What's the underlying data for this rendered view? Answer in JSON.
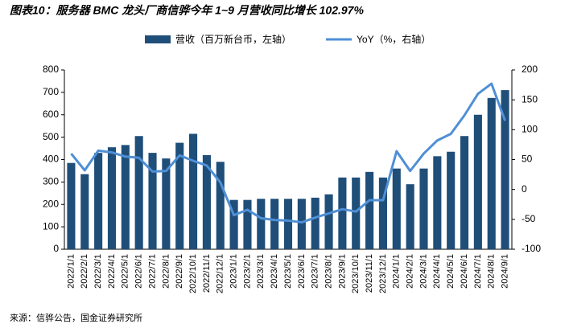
{
  "chart_data": {
    "type": "bar-line",
    "title": "图表10：服务器 BMC 龙头厂商信骅今年 1~9 月营收同比增长 102.97%",
    "source": "来源：信骅公告，国金证券研究所",
    "categories": [
      "2022/1/1",
      "2022/2/1",
      "2022/3/1",
      "2022/4/1",
      "2022/5/1",
      "2022/6/1",
      "2022/7/1",
      "2022/8/1",
      "2022/9/1",
      "2022/10/1",
      "2022/11/1",
      "2022/12/1",
      "2023/1/1",
      "2023/2/1",
      "2023/3/1",
      "2023/4/1",
      "2023/5/1",
      "2023/6/1",
      "2023/7/1",
      "2023/8/1",
      "2023/9/1",
      "2023/10/1",
      "2023/11/1",
      "2023/12/1",
      "2024/1/1",
      "2024/2/1",
      "2024/3/1",
      "2024/4/1",
      "2024/5/1",
      "2024/6/1",
      "2024/7/1",
      "2024/8/1",
      "2024/9/1"
    ],
    "series": [
      {
        "name": "营收（百万新台币，左轴）",
        "color": "#1f4e79",
        "type": "bar",
        "axis": "y",
        "values": [
          385,
          335,
          430,
          455,
          465,
          505,
          430,
          405,
          475,
          515,
          420,
          390,
          220,
          220,
          225,
          225,
          225,
          225,
          230,
          245,
          320,
          320,
          345,
          320,
          360,
          290,
          360,
          415,
          435,
          505,
          600,
          675,
          710
        ]
      },
      {
        "name": "YoY（%，右轴）",
        "color": "#4f8fd6",
        "type": "line",
        "axis": "y2",
        "values": [
          60,
          32,
          65,
          62,
          55,
          53,
          30,
          31,
          57,
          48,
          40,
          12,
          -43,
          -34,
          -48,
          -51,
          -52,
          -55,
          -47,
          -40,
          -33,
          -37,
          -18,
          -18,
          64,
          31,
          60,
          82,
          93,
          124,
          160,
          177,
          115
        ]
      }
    ],
    "ylim": [
      0,
      800
    ],
    "yticks": [
      0,
      100,
      200,
      300,
      400,
      500,
      600,
      700,
      800
    ],
    "y2lim": [
      -100,
      200
    ],
    "y2ticks": [
      -100,
      -50,
      0,
      50,
      100,
      150,
      200
    ]
  }
}
